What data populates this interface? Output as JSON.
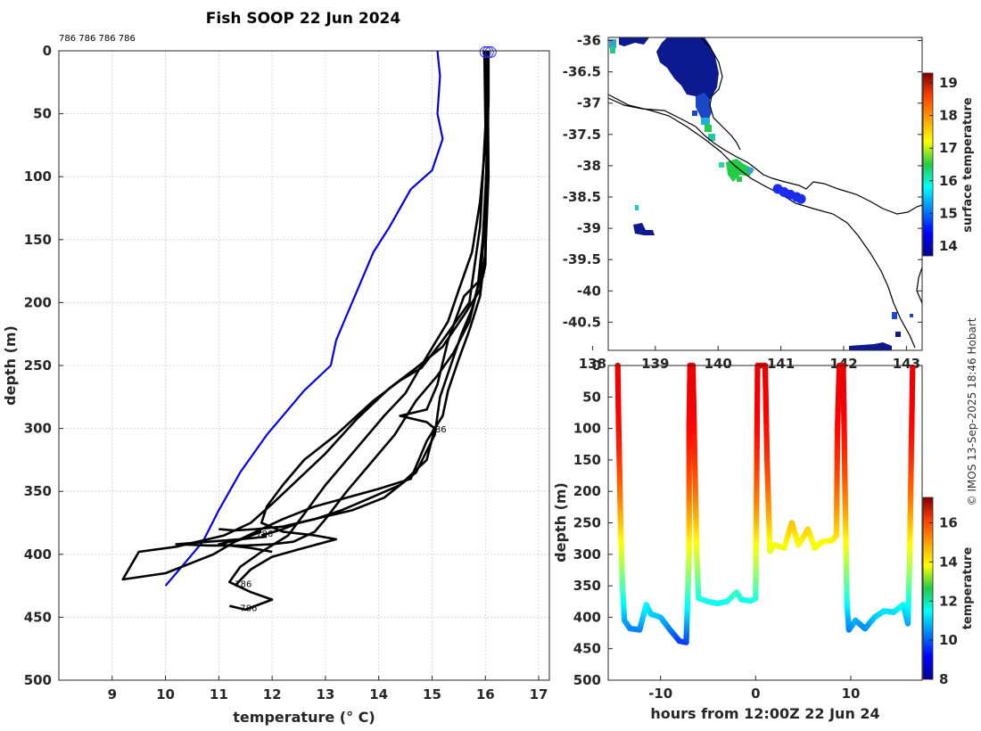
{
  "chart_data": [
    {
      "type": "line",
      "title": "Fish SOOP 22 Jun 2024",
      "xlabel": "temperature (° C)",
      "ylabel": "depth (m)",
      "xlim": [
        8,
        17.2
      ],
      "ylim": [
        500,
        0
      ],
      "xticks": [
        9,
        10,
        11,
        12,
        13,
        14,
        15,
        16,
        17
      ],
      "yticks": [
        0,
        50,
        100,
        150,
        200,
        250,
        300,
        350,
        400,
        450,
        500
      ],
      "top_labels": "786 786 786 786",
      "profile_labels": [
        {
          "text": "786",
          "t": 14.95,
          "d": 303
        },
        {
          "text": "786",
          "t": 11.7,
          "d": 386
        },
        {
          "text": "786",
          "t": 11.3,
          "d": 426
        },
        {
          "text": "786",
          "t": 11.4,
          "d": 445
        }
      ],
      "series": [
        {
          "name": "climatology",
          "color": "#0000ee",
          "points": [
            [
              15.1,
              0
            ],
            [
              15.15,
              20
            ],
            [
              15.1,
              50
            ],
            [
              15.2,
              70
            ],
            [
              15.0,
              95
            ],
            [
              14.6,
              110
            ],
            [
              14.2,
              140
            ],
            [
              13.9,
              160
            ],
            [
              13.6,
              190
            ],
            [
              13.4,
              210
            ],
            [
              13.2,
              230
            ],
            [
              13.1,
              250
            ],
            [
              12.6,
              270
            ],
            [
              12.3,
              285
            ],
            [
              11.9,
              305
            ],
            [
              11.4,
              335
            ],
            [
              11.0,
              365
            ],
            [
              10.7,
              390
            ],
            [
              10.4,
              405
            ],
            [
              10.0,
              425
            ]
          ]
        },
        {
          "name": "profile 1",
          "color": "#000000",
          "points": [
            [
              15.98,
              0
            ],
            [
              16.0,
              60
            ],
            [
              15.9,
              140
            ],
            [
              15.7,
              200
            ],
            [
              15.2,
              230
            ],
            [
              14.8,
              252
            ],
            [
              14.4,
              262
            ],
            [
              13.9,
              278
            ],
            [
              13.2,
              305
            ],
            [
              12.6,
              325
            ],
            [
              12.2,
              345
            ],
            [
              11.9,
              362
            ],
            [
              11.8,
              375
            ],
            [
              12.2,
              382
            ],
            [
              12.8,
              385
            ],
            [
              13.2,
              388
            ],
            [
              12.5,
              396
            ],
            [
              12.0,
              402
            ],
            [
              11.6,
              412
            ],
            [
              11.3,
              425
            ]
          ]
        },
        {
          "name": "profile 2",
          "color": "#000000",
          "points": [
            [
              16.0,
              0
            ],
            [
              16.05,
              50
            ],
            [
              16.0,
              120
            ],
            [
              15.9,
              190
            ],
            [
              15.6,
              210
            ],
            [
              15.2,
              235
            ],
            [
              14.7,
              252
            ],
            [
              14.2,
              268
            ],
            [
              13.6,
              292
            ],
            [
              13.0,
              320
            ],
            [
              12.5,
              340
            ],
            [
              12.0,
              360
            ],
            [
              11.6,
              375
            ],
            [
              11.1,
              385
            ],
            [
              10.6,
              390
            ],
            [
              10.2,
              394
            ],
            [
              9.5,
              398
            ],
            [
              9.2,
              420
            ],
            [
              10.0,
              415
            ],
            [
              10.9,
              400
            ],
            [
              11.3,
              390
            ],
            [
              11.8,
              382
            ]
          ]
        },
        {
          "name": "profile 3",
          "color": "#000000",
          "points": [
            [
              16.02,
              0
            ],
            [
              16.03,
              60
            ],
            [
              15.9,
              120
            ],
            [
              15.75,
              160
            ],
            [
              15.5,
              190
            ],
            [
              15.3,
              215
            ],
            [
              14.8,
              250
            ],
            [
              14.5,
              272
            ],
            [
              14.1,
              290
            ],
            [
              13.6,
              315
            ],
            [
              13.0,
              345
            ],
            [
              12.6,
              368
            ],
            [
              12.3,
              385
            ],
            [
              11.8,
              398
            ],
            [
              11.4,
              410
            ],
            [
              11.2,
              422
            ],
            [
              11.6,
              430
            ],
            [
              12.0,
              436
            ],
            [
              11.5,
              444
            ],
            [
              11.2,
              441
            ]
          ]
        },
        {
          "name": "profile 4",
          "color": "#000000",
          "points": [
            [
              16.05,
              0
            ],
            [
              16.04,
              80
            ],
            [
              15.95,
              150
            ],
            [
              15.85,
              190
            ],
            [
              15.7,
              215
            ],
            [
              15.4,
              240
            ],
            [
              15.1,
              258
            ],
            [
              14.7,
              278
            ],
            [
              14.3,
              305
            ],
            [
              13.8,
              330
            ],
            [
              13.4,
              350
            ],
            [
              13.0,
              372
            ],
            [
              12.8,
              382
            ],
            [
              12.4,
              390
            ],
            [
              12.0,
              392
            ],
            [
              11.5,
              393
            ],
            [
              10.8,
              393
            ],
            [
              10.2,
              392
            ],
            [
              10.8,
              390
            ],
            [
              11.4,
              388
            ],
            [
              11.9,
              386
            ]
          ]
        },
        {
          "name": "profile 5",
          "color": "#000000",
          "points": [
            [
              16.04,
              0
            ],
            [
              16.06,
              100
            ],
            [
              16.0,
              160
            ],
            [
              15.9,
              195
            ],
            [
              15.7,
              222
            ],
            [
              15.5,
              245
            ],
            [
              15.3,
              270
            ],
            [
              15.2,
              290
            ],
            [
              14.9,
              310
            ],
            [
              14.6,
              340
            ],
            [
              14.0,
              348
            ],
            [
              13.4,
              355
            ],
            [
              12.8,
              362
            ],
            [
              12.2,
              372
            ],
            [
              11.8,
              380
            ],
            [
              11.4,
              388
            ],
            [
              11.0,
              392
            ],
            [
              11.6,
              395
            ],
            [
              12.0,
              398
            ]
          ]
        },
        {
          "name": "profile 6",
          "color": "#000000",
          "points": [
            [
              16.03,
              0
            ],
            [
              16.05,
              30
            ],
            [
              16.02,
              110
            ],
            [
              16.0,
              170
            ],
            [
              15.95,
              180
            ],
            [
              15.6,
              195
            ],
            [
              15.3,
              230
            ],
            [
              15.1,
              265
            ],
            [
              14.9,
              285
            ],
            [
              14.4,
              290
            ],
            [
              14.9,
              295
            ],
            [
              15.05,
              300
            ],
            [
              14.9,
              325
            ],
            [
              14.4,
              345
            ],
            [
              13.8,
              356
            ],
            [
              13.3,
              365
            ],
            [
              12.8,
              372
            ],
            [
              12.2,
              378
            ],
            [
              11.7,
              380
            ],
            [
              11.3,
              381
            ],
            [
              11.0,
              380
            ]
          ]
        },
        {
          "name": "profile 7",
          "color": "#000000",
          "points": [
            [
              16.06,
              0
            ],
            [
              16.06,
              40
            ],
            [
              16.02,
              90
            ],
            [
              15.98,
              145
            ],
            [
              15.9,
              180
            ],
            [
              15.75,
              205
            ],
            [
              15.55,
              225
            ],
            [
              15.35,
              250
            ],
            [
              15.15,
              275
            ],
            [
              15.05,
              305
            ],
            [
              14.7,
              335
            ],
            [
              14.1,
              355
            ],
            [
              13.5,
              365
            ],
            [
              13.0,
              370
            ],
            [
              12.5,
              375
            ],
            [
              12.2,
              380
            ],
            [
              11.8,
              385
            ]
          ]
        }
      ]
    },
    {
      "type": "heatmap",
      "name": "surface temperature map",
      "xlim": [
        138.25,
        143.25
      ],
      "ylim": [
        -40.95,
        -35.95
      ],
      "xticks": [
        138,
        139,
        140,
        141,
        142,
        143
      ],
      "xtick_labels": [
        "138",
        "139",
        "140",
        "141",
        "142",
        "143"
      ],
      "yticks": [
        -36,
        -36.5,
        -37,
        -37.5,
        -38,
        -38.5,
        -39,
        -39.5,
        -40,
        -40.5
      ],
      "ytick_labels": [
        "-36",
        "-36.5",
        "-37",
        "-37.5",
        "-38",
        "-38.5",
        "-39",
        "-39.5",
        "-40",
        "-40.5"
      ],
      "colorbar_label": "surface temperature",
      "colorbar_range": [
        13.7,
        19.3
      ],
      "colorbar_ticks": [
        14,
        15,
        16,
        17,
        18,
        19
      ],
      "track_points": [
        [
          140.95,
          -38.37
        ],
        [
          141.05,
          -38.42
        ],
        [
          141.15,
          -38.46
        ],
        [
          141.25,
          -38.5
        ],
        [
          141.32,
          -38.53
        ]
      ]
    },
    {
      "type": "scatter",
      "name": "depth vs time",
      "xlabel": "hours from 12:00Z 22 Jun 24",
      "ylabel": "depth (m)",
      "xlim": [
        -15.5,
        17.5
      ],
      "ylim": [
        500,
        0
      ],
      "xticks": [
        -10,
        0,
        10
      ],
      "yticks": [
        0,
        50,
        100,
        150,
        200,
        250,
        300,
        350,
        400,
        450,
        500
      ],
      "colorbar_label": "temperature",
      "colorbar_range": [
        8,
        17.3
      ],
      "colorbar_ticks": [
        8,
        10,
        12,
        14,
        16
      ],
      "points": [
        [
          -14.5,
          0
        ],
        [
          -14.4,
          100
        ],
        [
          -14.2,
          250
        ],
        [
          -14.0,
          350
        ],
        [
          -13.8,
          405
        ],
        [
          -13.2,
          418
        ],
        [
          -12.2,
          420
        ],
        [
          -11.5,
          380
        ],
        [
          -11.0,
          395
        ],
        [
          -10.0,
          400
        ],
        [
          -9.0,
          420
        ],
        [
          -8.0,
          438
        ],
        [
          -7.3,
          440
        ],
        [
          -7.0,
          300
        ],
        [
          -7.0,
          100
        ],
        [
          -6.9,
          0
        ],
        [
          -6.6,
          0
        ],
        [
          -6.4,
          150
        ],
        [
          -6.2,
          300
        ],
        [
          -6.0,
          370
        ],
        [
          -5.0,
          375
        ],
        [
          -4.0,
          378
        ],
        [
          -3.0,
          375
        ],
        [
          -2.0,
          360
        ],
        [
          -1.5,
          372
        ],
        [
          -0.5,
          374
        ],
        [
          0,
          370
        ],
        [
          0.1,
          200
        ],
        [
          0.2,
          0
        ],
        [
          1.0,
          0
        ],
        [
          1.2,
          150
        ],
        [
          1.5,
          295
        ],
        [
          2.0,
          285
        ],
        [
          3.0,
          290
        ],
        [
          3.8,
          250
        ],
        [
          4.5,
          285
        ],
        [
          5.5,
          260
        ],
        [
          6.2,
          290
        ],
        [
          7.0,
          280
        ],
        [
          8.0,
          278
        ],
        [
          8.5,
          270
        ],
        [
          8.6,
          100
        ],
        [
          8.8,
          0
        ],
        [
          9.2,
          0
        ],
        [
          9.4,
          200
        ],
        [
          9.6,
          380
        ],
        [
          9.8,
          420
        ],
        [
          10.5,
          405
        ],
        [
          11.5,
          418
        ],
        [
          12.5,
          400
        ],
        [
          13.5,
          390
        ],
        [
          14.5,
          392
        ],
        [
          15.5,
          380
        ],
        [
          16.0,
          410
        ],
        [
          16.2,
          300
        ],
        [
          16.4,
          100
        ],
        [
          16.5,
          0
        ]
      ]
    }
  ],
  "copyright": "© IMOS 13-Sep-2025 18:46 Hobart"
}
